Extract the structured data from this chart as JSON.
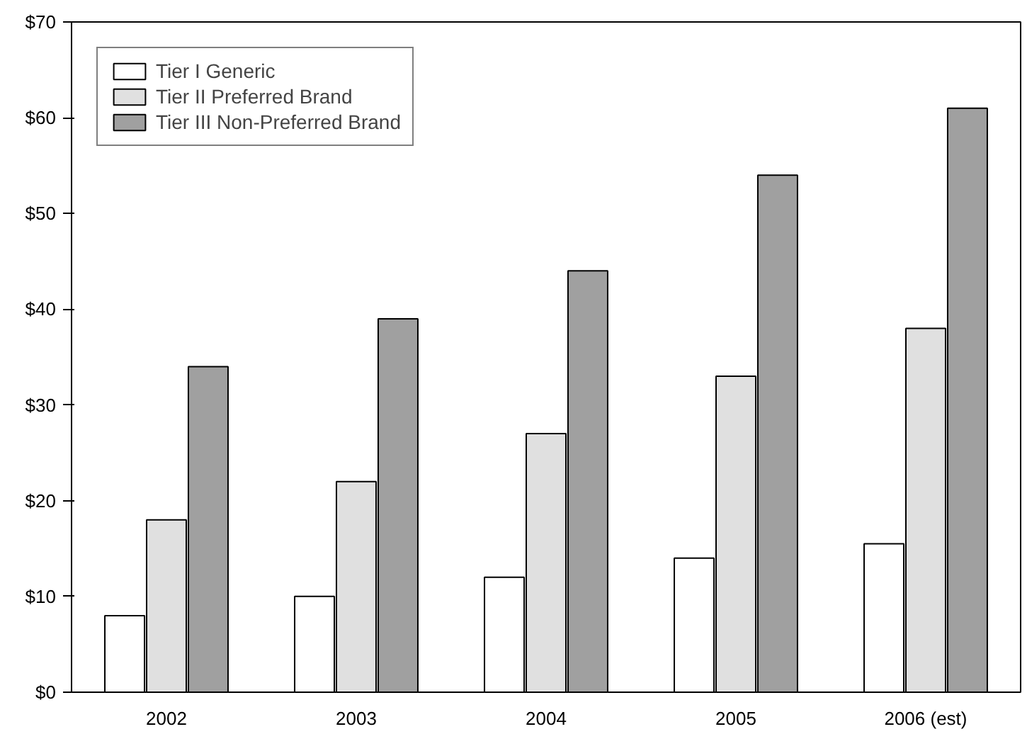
{
  "chart_data": {
    "type": "bar",
    "categories": [
      "2002",
      "2003",
      "2004",
      "2005",
      "2006 (est)"
    ],
    "series": [
      {
        "name": "Tier I Generic",
        "color": "#ffffff",
        "values": [
          8,
          10,
          12,
          14,
          15.5
        ]
      },
      {
        "name": "Tier II Preferred Brand",
        "color": "#e0e0e0",
        "values": [
          18,
          22,
          27,
          33,
          38
        ]
      },
      {
        "name": "Tier III Non-Preferred Brand",
        "color": "#a0a0a0",
        "values": [
          34,
          39,
          44,
          54,
          61
        ]
      }
    ],
    "ylim": [
      0,
      70
    ],
    "yticks": [
      {
        "value": 0,
        "label": "$0"
      },
      {
        "value": 10,
        "label": "$10"
      },
      {
        "value": 20,
        "label": "$20"
      },
      {
        "value": 30,
        "label": "$30"
      },
      {
        "value": 40,
        "label": "$40"
      },
      {
        "value": 50,
        "label": "$50"
      },
      {
        "value": 60,
        "label": "$60"
      },
      {
        "value": 70,
        "label": "$70"
      }
    ],
    "grid": false,
    "legend": "top left"
  }
}
